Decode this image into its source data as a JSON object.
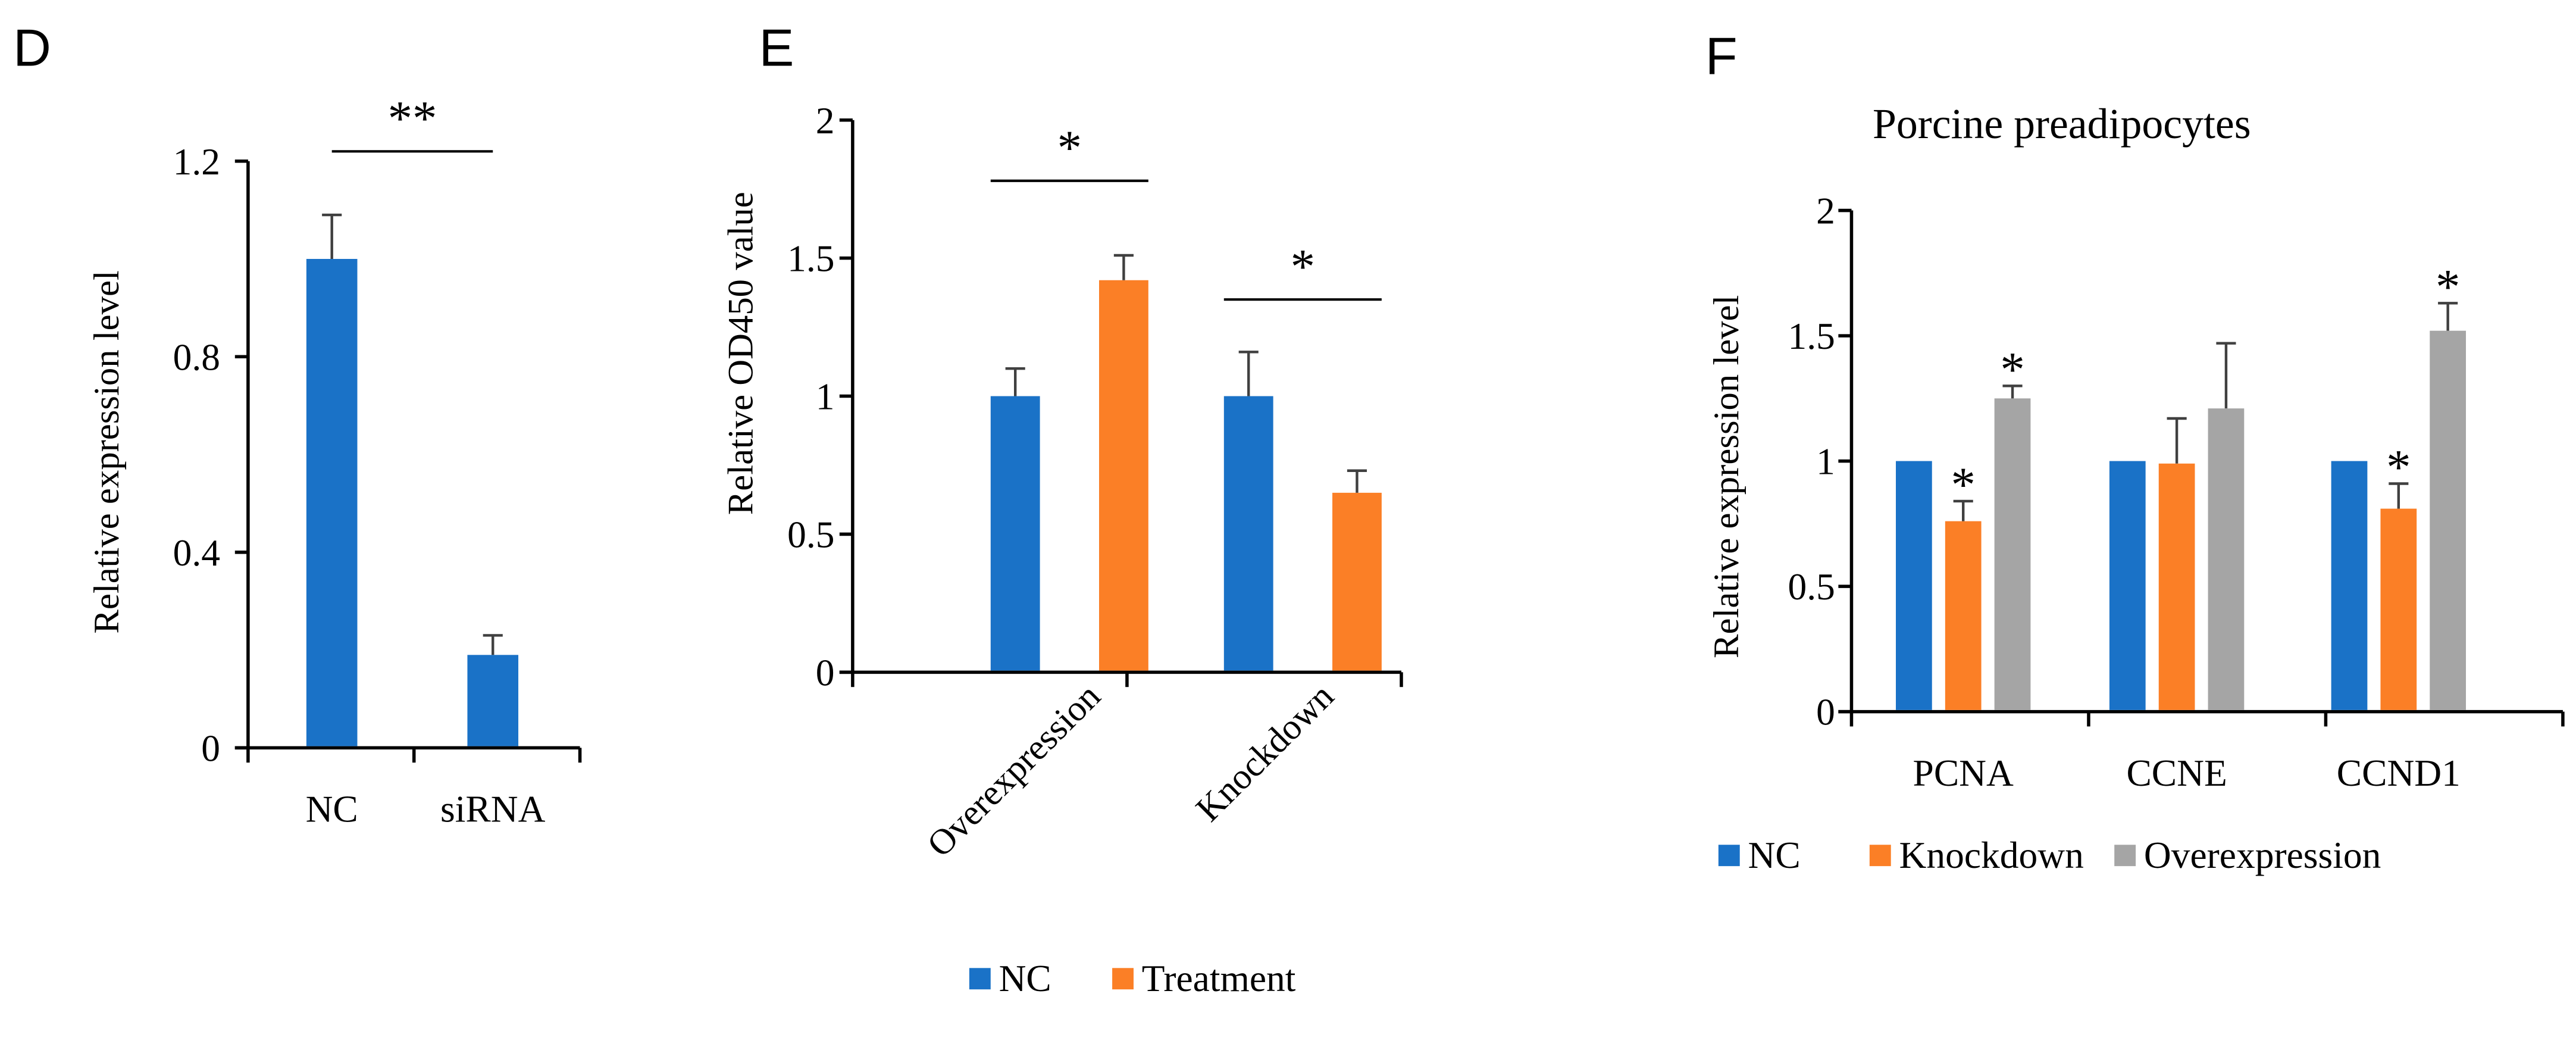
{
  "colors": {
    "nc": "#1a72c7",
    "orange": "#fb7f26",
    "gray": "#a5a5a5",
    "axis": "#000000",
    "error": "#404040"
  },
  "chart_data": [
    {
      "panel_label": "D",
      "type": "bar",
      "title": "",
      "ylabel": "Relative expression level",
      "xlabel": "",
      "ylim": [
        0,
        1.2
      ],
      "yticks": [
        "0",
        "0.4",
        "0.8",
        "1.2"
      ],
      "categories": [
        "NC",
        "siRNA"
      ],
      "series": [
        {
          "name": "",
          "color_key": "nc",
          "values": [
            1.0,
            0.19
          ],
          "errors": [
            0.09,
            0.04
          ]
        }
      ],
      "annotations": [
        {
          "type": "bracket",
          "label": "**",
          "from_category": 0,
          "to_category": 1,
          "y": 1.22
        }
      ],
      "legend": null
    },
    {
      "panel_label": "E",
      "type": "bar",
      "title": "",
      "ylabel": "Relative OD450 value",
      "xlabel": "",
      "ylim": [
        0,
        2
      ],
      "yticks": [
        "0",
        "0.5",
        "1",
        "1.5",
        "2"
      ],
      "categories": [
        "Overexpression",
        "Knockdown"
      ],
      "series": [
        {
          "name": "NC",
          "color_key": "nc",
          "values": [
            1.0,
            1.0
          ],
          "errors": [
            0.1,
            0.16
          ]
        },
        {
          "name": "Treatment",
          "color_key": "orange",
          "values": [
            1.42,
            0.65
          ],
          "errors": [
            0.09,
            0.08
          ]
        }
      ],
      "annotations": [
        {
          "type": "bracket",
          "label": "*",
          "category": 0,
          "y": 1.78
        },
        {
          "type": "bracket",
          "label": "*",
          "category": 1,
          "y": 1.35
        }
      ],
      "legend": {
        "position": "bottom",
        "entries": [
          "NC",
          "Treatment"
        ]
      }
    },
    {
      "panel_label": "F",
      "type": "bar",
      "title": "Porcine preadipocytes",
      "ylabel": "Relative expression level",
      "xlabel": "",
      "ylim": [
        0,
        2
      ],
      "yticks": [
        "0",
        "0.5",
        "1",
        "1.5",
        "2"
      ],
      "categories": [
        "PCNA",
        "CCNE",
        "CCND1"
      ],
      "series": [
        {
          "name": "NC",
          "color_key": "nc",
          "values": [
            1.0,
            1.0,
            1.0
          ],
          "errors": [
            0,
            0,
            0
          ]
        },
        {
          "name": "Knockdown",
          "color_key": "orange",
          "values": [
            0.76,
            0.99,
            0.81
          ],
          "errors": [
            0.08,
            0.18,
            0.1
          ]
        },
        {
          "name": "Overexpression",
          "color_key": "gray",
          "values": [
            1.25,
            1.21,
            1.52
          ],
          "errors": [
            0.05,
            0.26,
            0.11
          ]
        }
      ],
      "annotations": [
        {
          "type": "star",
          "label": "*",
          "category": 0,
          "series": 1
        },
        {
          "type": "star",
          "label": "*",
          "category": 0,
          "series": 2
        },
        {
          "type": "star",
          "label": "*",
          "category": 2,
          "series": 1
        },
        {
          "type": "star",
          "label": "*",
          "category": 2,
          "series": 2
        }
      ],
      "legend": {
        "position": "bottom",
        "entries": [
          "NC",
          "Knockdown",
          "Overexpression"
        ]
      }
    }
  ]
}
